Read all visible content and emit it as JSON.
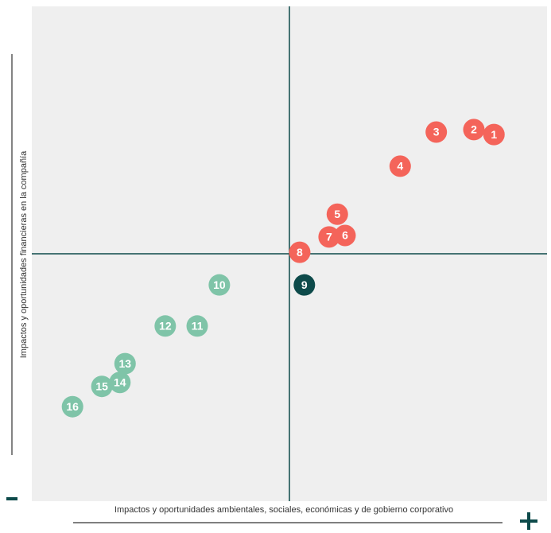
{
  "chart_data": {
    "type": "scatter",
    "xlabel": "Impactos y oportunidades ambientales, sociales, económicas y de gobierno corporativo",
    "ylabel": "Impactos y oportunidades financieras en la compañía",
    "xlim": [
      0,
      100
    ],
    "ylim": [
      0,
      100
    ],
    "xdivider": 50,
    "ydivider": 50,
    "series": [
      {
        "labels": [
          "1",
          "2",
          "3",
          "4",
          "5",
          "6",
          "7",
          "8",
          "9",
          "10",
          "11",
          "12",
          "13",
          "14",
          "15",
          "16"
        ],
        "x": [
          89.7,
          85.8,
          78.5,
          71.5,
          59.3,
          60.8,
          57.7,
          52.0,
          52.9,
          36.4,
          32.1,
          25.9,
          18.1,
          17.1,
          13.6,
          7.9
        ],
        "values": [
          74.1,
          75.1,
          74.6,
          67.7,
          58.0,
          53.7,
          53.4,
          50.3,
          43.7,
          43.7,
          35.4,
          35.4,
          27.8,
          24.0,
          23.2,
          19.1
        ],
        "colors": [
          "#f4645a",
          "#f4645a",
          "#f4645a",
          "#f4645a",
          "#f4645a",
          "#f4645a",
          "#f4645a",
          "#f4645a",
          "#0d4a4a",
          "#7fc4a8",
          "#7fc4a8",
          "#7fc4a8",
          "#7fc4a8",
          "#7fc4a8",
          "#7fc4a8",
          "#7fc4a8"
        ]
      }
    ]
  }
}
